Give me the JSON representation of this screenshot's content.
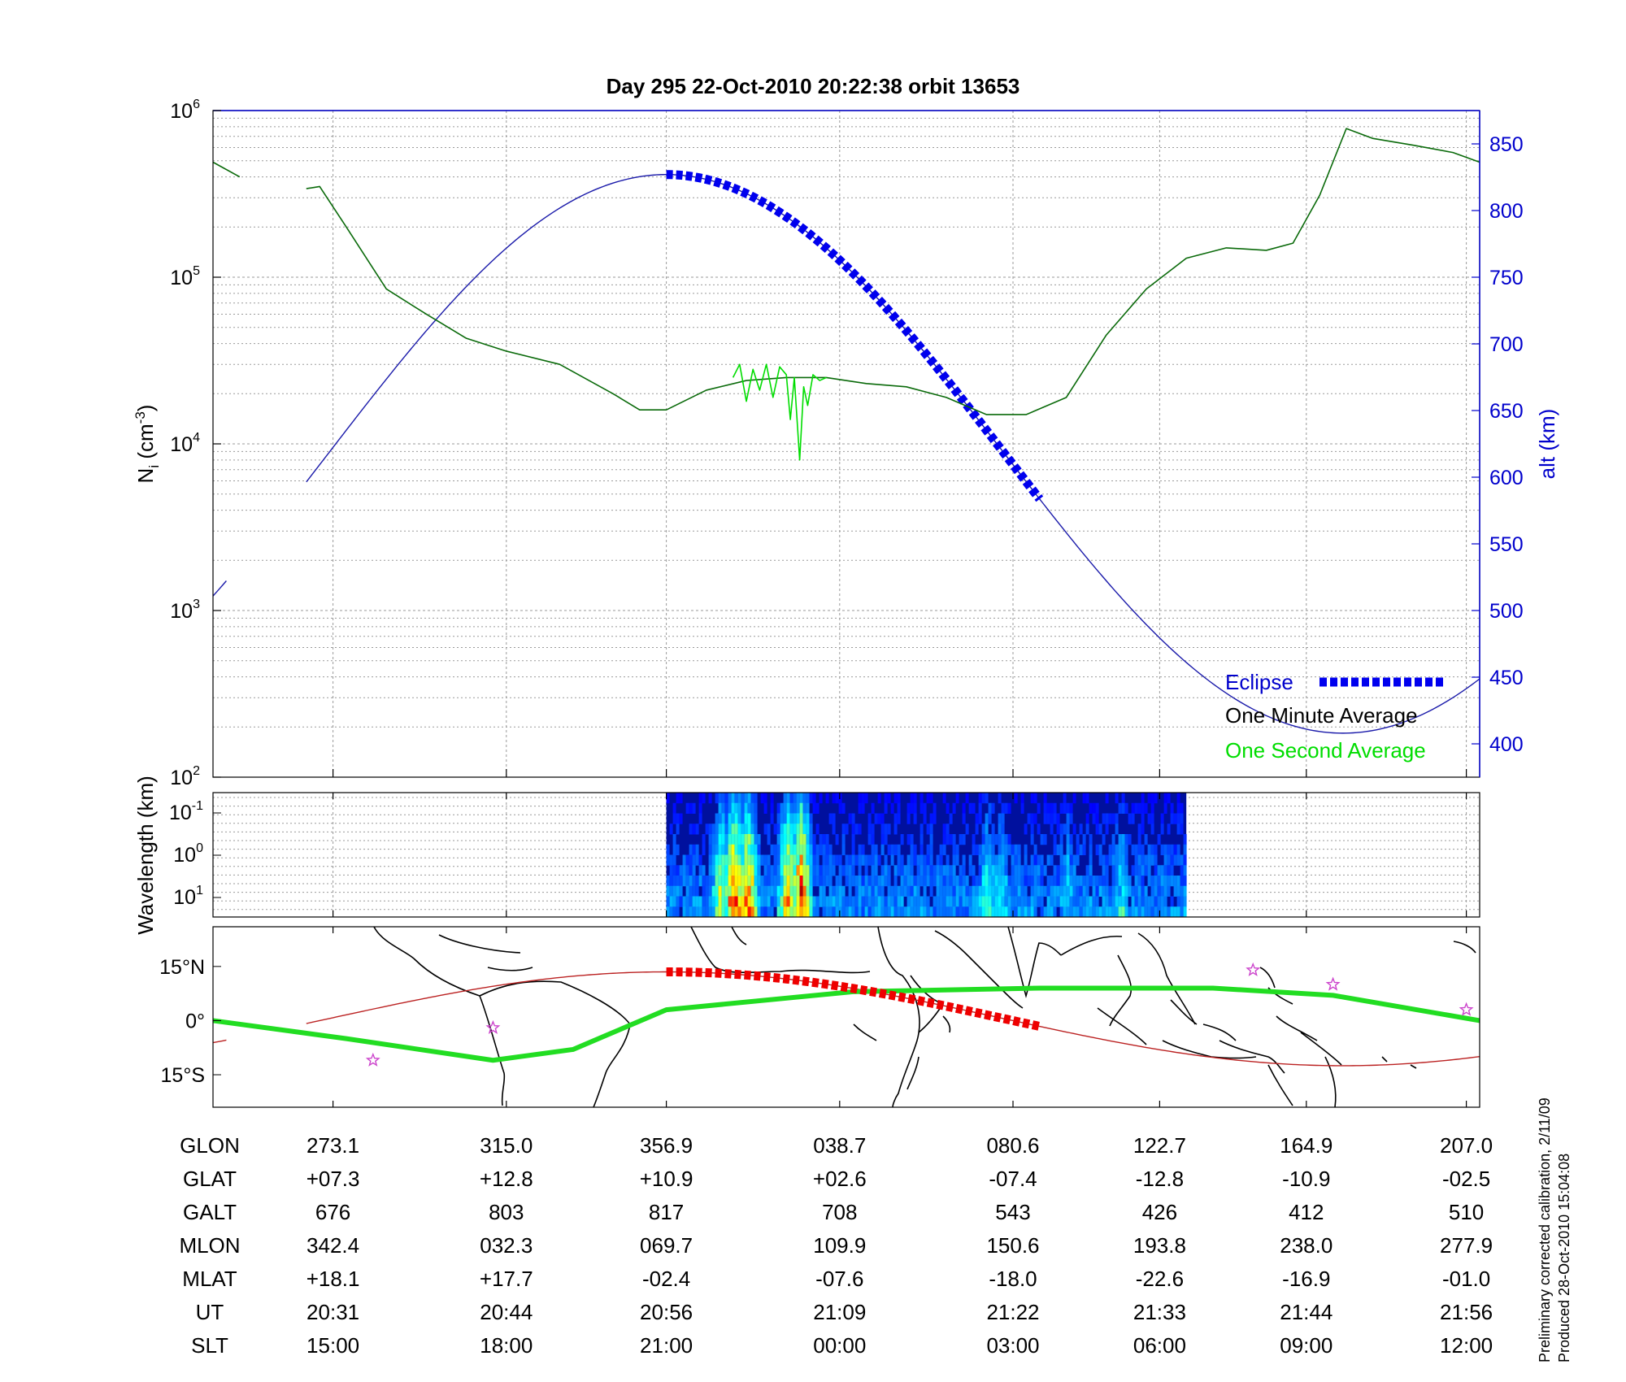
{
  "title": "Day 295  22-Oct-2010 20:22:38   orbit 13653",
  "chart_data": [
    {
      "name": "density-altitude",
      "type": "line",
      "ylabel": "N",
      "ylabel_sub": "i",
      "ylabel_unit": " (cm",
      "ylabel_exp": "-3",
      "ylabel_close": ")",
      "y_scale": "log",
      "ylim": [
        100,
        1000000
      ],
      "y_ticks": [
        {
          "base": "10",
          "exp": "2",
          "value": 100
        },
        {
          "base": "10",
          "exp": "3",
          "value": 1000
        },
        {
          "base": "10",
          "exp": "4",
          "value": 10000
        },
        {
          "base": "10",
          "exp": "5",
          "value": 100000
        },
        {
          "base": "10",
          "exp": "6",
          "value": 1000000
        }
      ],
      "y2label": "alt (km)",
      "y2lim": [
        375,
        875
      ],
      "y2_ticks": [
        "400",
        "450",
        "500",
        "550",
        "600",
        "650",
        "700",
        "750",
        "800",
        "850"
      ],
      "x_ticks_ut": [
        "20:31",
        "20:44",
        "20:56",
        "21:09",
        "21:22",
        "21:33",
        "21:44",
        "21:56"
      ],
      "legend": {
        "placement": "bottom-right",
        "eclipse": "Eclipse",
        "minute": "One Minute Average",
        "second": "One Second Average"
      },
      "colors": {
        "altitude": "#1a1aaa",
        "eclipse": "#0000ee",
        "minute": "#0a6a0a",
        "second": "#00dd00"
      },
      "altitude_km": {
        "period_min": 101.5,
        "mean": 617.5,
        "amplitude": 209.5,
        "apogee_ut": "20:56",
        "gaps": [
          [
            "20:23",
            "20:29"
          ]
        ]
      },
      "eclipse": {
        "start_ut": "20:56",
        "end_ut": "21:24"
      },
      "density_one_minute": {
        "ut": [
          "20:22",
          "20:24",
          "20:29",
          "20:30",
          "20:32",
          "20:35",
          "20:38",
          "20:41",
          "20:44",
          "20:48",
          "20:52",
          "20:54",
          "20:56",
          "20:59",
          "21:02",
          "21:05",
          "21:08",
          "21:11",
          "21:14",
          "21:17",
          "21:20",
          "21:23",
          "21:26",
          "21:29",
          "21:32",
          "21:35",
          "21:38",
          "21:41",
          "21:43",
          "21:45",
          "21:47",
          "21:49",
          "21:52",
          "21:55",
          "21:57"
        ],
        "ni": [
          490000,
          400000,
          340000,
          350000,
          200000,
          85000,
          60000,
          43000,
          36000,
          30000,
          20000,
          16000,
          16000,
          21000,
          24000,
          25000,
          25000,
          23000,
          22000,
          19000,
          15000,
          15000,
          19000,
          45000,
          85000,
          130000,
          150000,
          145000,
          160000,
          310000,
          780000,
          680000,
          620000,
          560000,
          490000
        ],
        "gaps": [
          [
            "20:24",
            "20:29"
          ]
        ]
      },
      "density_one_second": {
        "ut": [
          "21:01",
          "21:01.5",
          "21:02",
          "21:02.5",
          "21:03",
          "21:03.5",
          "21:04",
          "21:04.5",
          "21:05",
          "21:05.3",
          "21:05.6",
          "21:06",
          "21:06.3",
          "21:06.6",
          "21:07",
          "21:07.5",
          "21:08"
        ],
        "ni": [
          25000,
          30000,
          18000,
          28000,
          21000,
          30000,
          19000,
          29000,
          26000,
          14000,
          25000,
          8000,
          22000,
          17000,
          26000,
          24000,
          25000
        ]
      }
    },
    {
      "name": "wavelength-spectrogram",
      "type": "heatmap",
      "ylabel": "Wavelength (km)",
      "y_ticks": [
        {
          "base": "10",
          "exp": "-1"
        },
        {
          "base": "10",
          "exp": "0"
        },
        {
          "base": "10",
          "exp": "1"
        }
      ],
      "y_scale": "log",
      "data_start_ut": "20:56",
      "data_end_ut": "21:35",
      "colormap": "jet",
      "activity": [
        {
          "ut": "21:00",
          "level": 0.55
        },
        {
          "ut": "21:01",
          "level": 0.9
        },
        {
          "ut": "21:02",
          "level": 0.8
        },
        {
          "ut": "21:05",
          "level": 0.7
        },
        {
          "ut": "21:06",
          "level": 0.95
        },
        {
          "ut": "21:20",
          "level": 0.35
        },
        {
          "ut": "21:21",
          "level": 0.3
        },
        {
          "ut": "21:26",
          "level": 0.25
        },
        {
          "ut": "21:30",
          "level": 0.3
        }
      ]
    },
    {
      "name": "ground-track-map",
      "type": "line",
      "y_ticks": [
        "15°N",
        "0°",
        "15°S"
      ],
      "ylim": [
        -24,
        26
      ],
      "colors": {
        "track": "#bb2222",
        "eclipse_track": "#ee0000",
        "magnetic_equator": "#22dd22",
        "stars": "#cc44cc"
      },
      "track_glat": {
        "mean": 0.5,
        "amplitude": 13.0,
        "apogee_ut": "20:56",
        "period_min": 101.5,
        "gaps": [
          [
            "20:23",
            "20:29"
          ]
        ]
      },
      "eclipse_track": {
        "start_ut": "20:56",
        "end_ut": "21:24"
      },
      "magnetic_equator": {
        "ut": [
          "20:22",
          "20:32",
          "20:43",
          "20:49",
          "20:56",
          "21:10",
          "21:24",
          "21:37",
          "21:46",
          "21:57"
        ],
        "lat": [
          0,
          -5,
          -11,
          -8,
          3,
          8,
          9,
          9,
          7,
          0
        ]
      },
      "stars_ut": [
        "20:34",
        "20:43",
        "21:40",
        "21:46",
        "21:56"
      ],
      "stars_lat": [
        -11,
        -2,
        14,
        10,
        3
      ]
    }
  ],
  "table": {
    "row_labels": [
      "GLON",
      "GLAT",
      "GALT",
      "MLON",
      "MLAT",
      "UT",
      "SLT"
    ],
    "columns": [
      [
        "273.1",
        "+07.3",
        "676",
        "342.4",
        "+18.1",
        "20:31",
        "15:00"
      ],
      [
        "315.0",
        "+12.8",
        "803",
        "032.3",
        "+17.7",
        "20:44",
        "18:00"
      ],
      [
        "356.9",
        "+10.9",
        "817",
        "069.7",
        "-02.4",
        "20:56",
        "21:00"
      ],
      [
        "038.7",
        "+02.6",
        "708",
        "109.9",
        "-07.6",
        "21:09",
        "00:00"
      ],
      [
        "080.6",
        "-07.4",
        "543",
        "150.6",
        "-18.0",
        "21:22",
        "03:00"
      ],
      [
        "122.7",
        "-12.8",
        "426",
        "193.8",
        "-22.6",
        "21:33",
        "06:00"
      ],
      [
        "164.9",
        "-10.9",
        "412",
        "238.0",
        "-16.9",
        "21:44",
        "09:00"
      ],
      [
        "207.0",
        "-02.5",
        "510",
        "277.9",
        "-01.0",
        "21:56",
        "12:00"
      ]
    ]
  },
  "side_note": {
    "line1": "Preliminary corrected calibration, 2/11/09",
    "line2": "Produced 28-Oct-2010 15:04:08"
  }
}
